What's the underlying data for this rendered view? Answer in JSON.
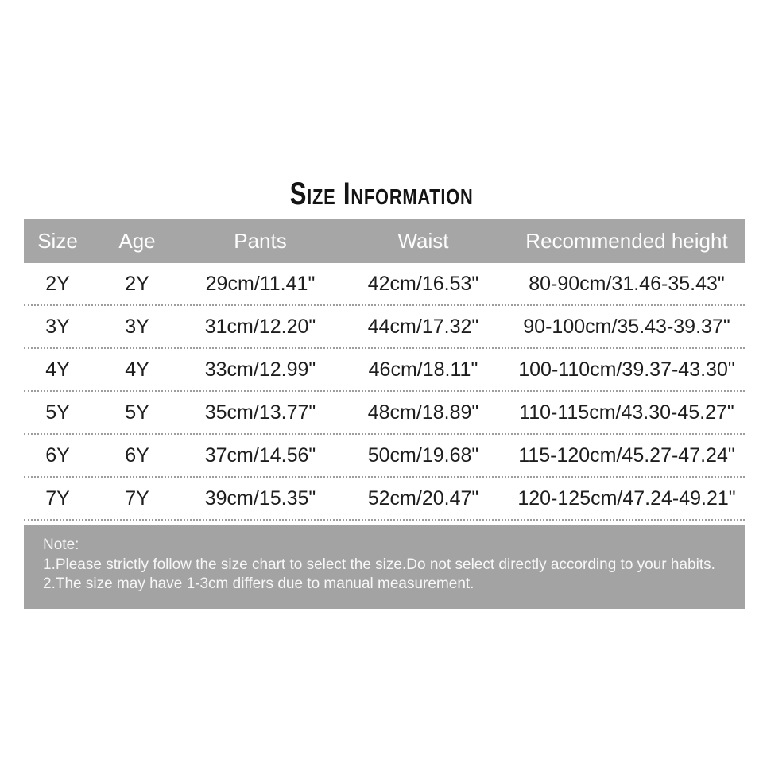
{
  "title": "Size Information",
  "table": {
    "columns": [
      "Size",
      "Age",
      "Pants",
      "Waist",
      "Recommended height"
    ],
    "rows": [
      [
        "2Y",
        "2Y",
        "29cm/11.41\"",
        "42cm/16.53\"",
        "80-90cm/31.46-35.43\""
      ],
      [
        "3Y",
        "3Y",
        "31cm/12.20\"",
        "44cm/17.32\"",
        "90-100cm/35.43-39.37\""
      ],
      [
        "4Y",
        "4Y",
        "33cm/12.99\"",
        "46cm/18.11\"",
        "100-110cm/39.37-43.30\""
      ],
      [
        "5Y",
        "5Y",
        "35cm/13.77\"",
        "48cm/18.89\"",
        "110-115cm/43.30-45.27\""
      ],
      [
        "6Y",
        "6Y",
        "37cm/14.56\"",
        "50cm/19.68\"",
        "115-120cm/45.27-47.24\""
      ],
      [
        "7Y",
        "7Y",
        "39cm/15.35\"",
        "52cm/20.47\"",
        "120-125cm/47.24-49.21\""
      ]
    ]
  },
  "note": {
    "title": "Note:",
    "lines": [
      "1.Please strictly follow the size chart to select the size.Do not select directly according to your habits.",
      "2.The size may have 1-3cm differs due to manual measurement."
    ]
  },
  "colors": {
    "header_bg": "#a6a6a6",
    "note_bg": "#a3a3a3",
    "body_text": "#1e1e1e",
    "header_text": "#fdfdfd",
    "divider": "#9d9d9d",
    "background": "#ffffff"
  }
}
